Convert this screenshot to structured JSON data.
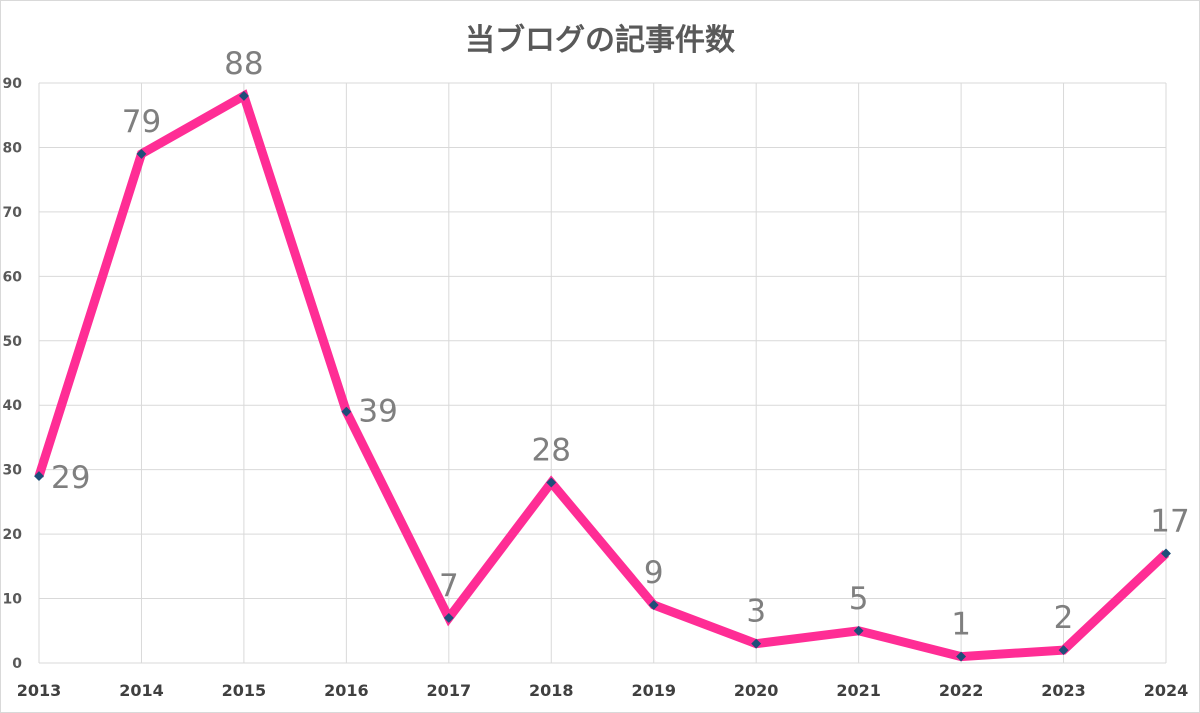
{
  "chart_data": {
    "type": "line",
    "title": "当ブログの記事件数",
    "xlabel": "",
    "ylabel": "",
    "categories": [
      "2013",
      "2014",
      "2015",
      "2016",
      "2017",
      "2018",
      "2019",
      "2020",
      "2021",
      "2022",
      "2023",
      "2024"
    ],
    "series": [
      {
        "values": [
          29,
          79,
          88,
          39,
          7,
          28,
          9,
          3,
          5,
          1,
          2,
          17
        ]
      }
    ],
    "ylim": [
      0,
      90
    ],
    "yticks": [
      0,
      10,
      20,
      30,
      40,
      50,
      60,
      70,
      80,
      90
    ],
    "grid": true,
    "legend": "none",
    "data_labels": true,
    "colors": {
      "line": "#ff2d95",
      "marker": "#1f4e79",
      "label": "#7f7f7f"
    }
  }
}
